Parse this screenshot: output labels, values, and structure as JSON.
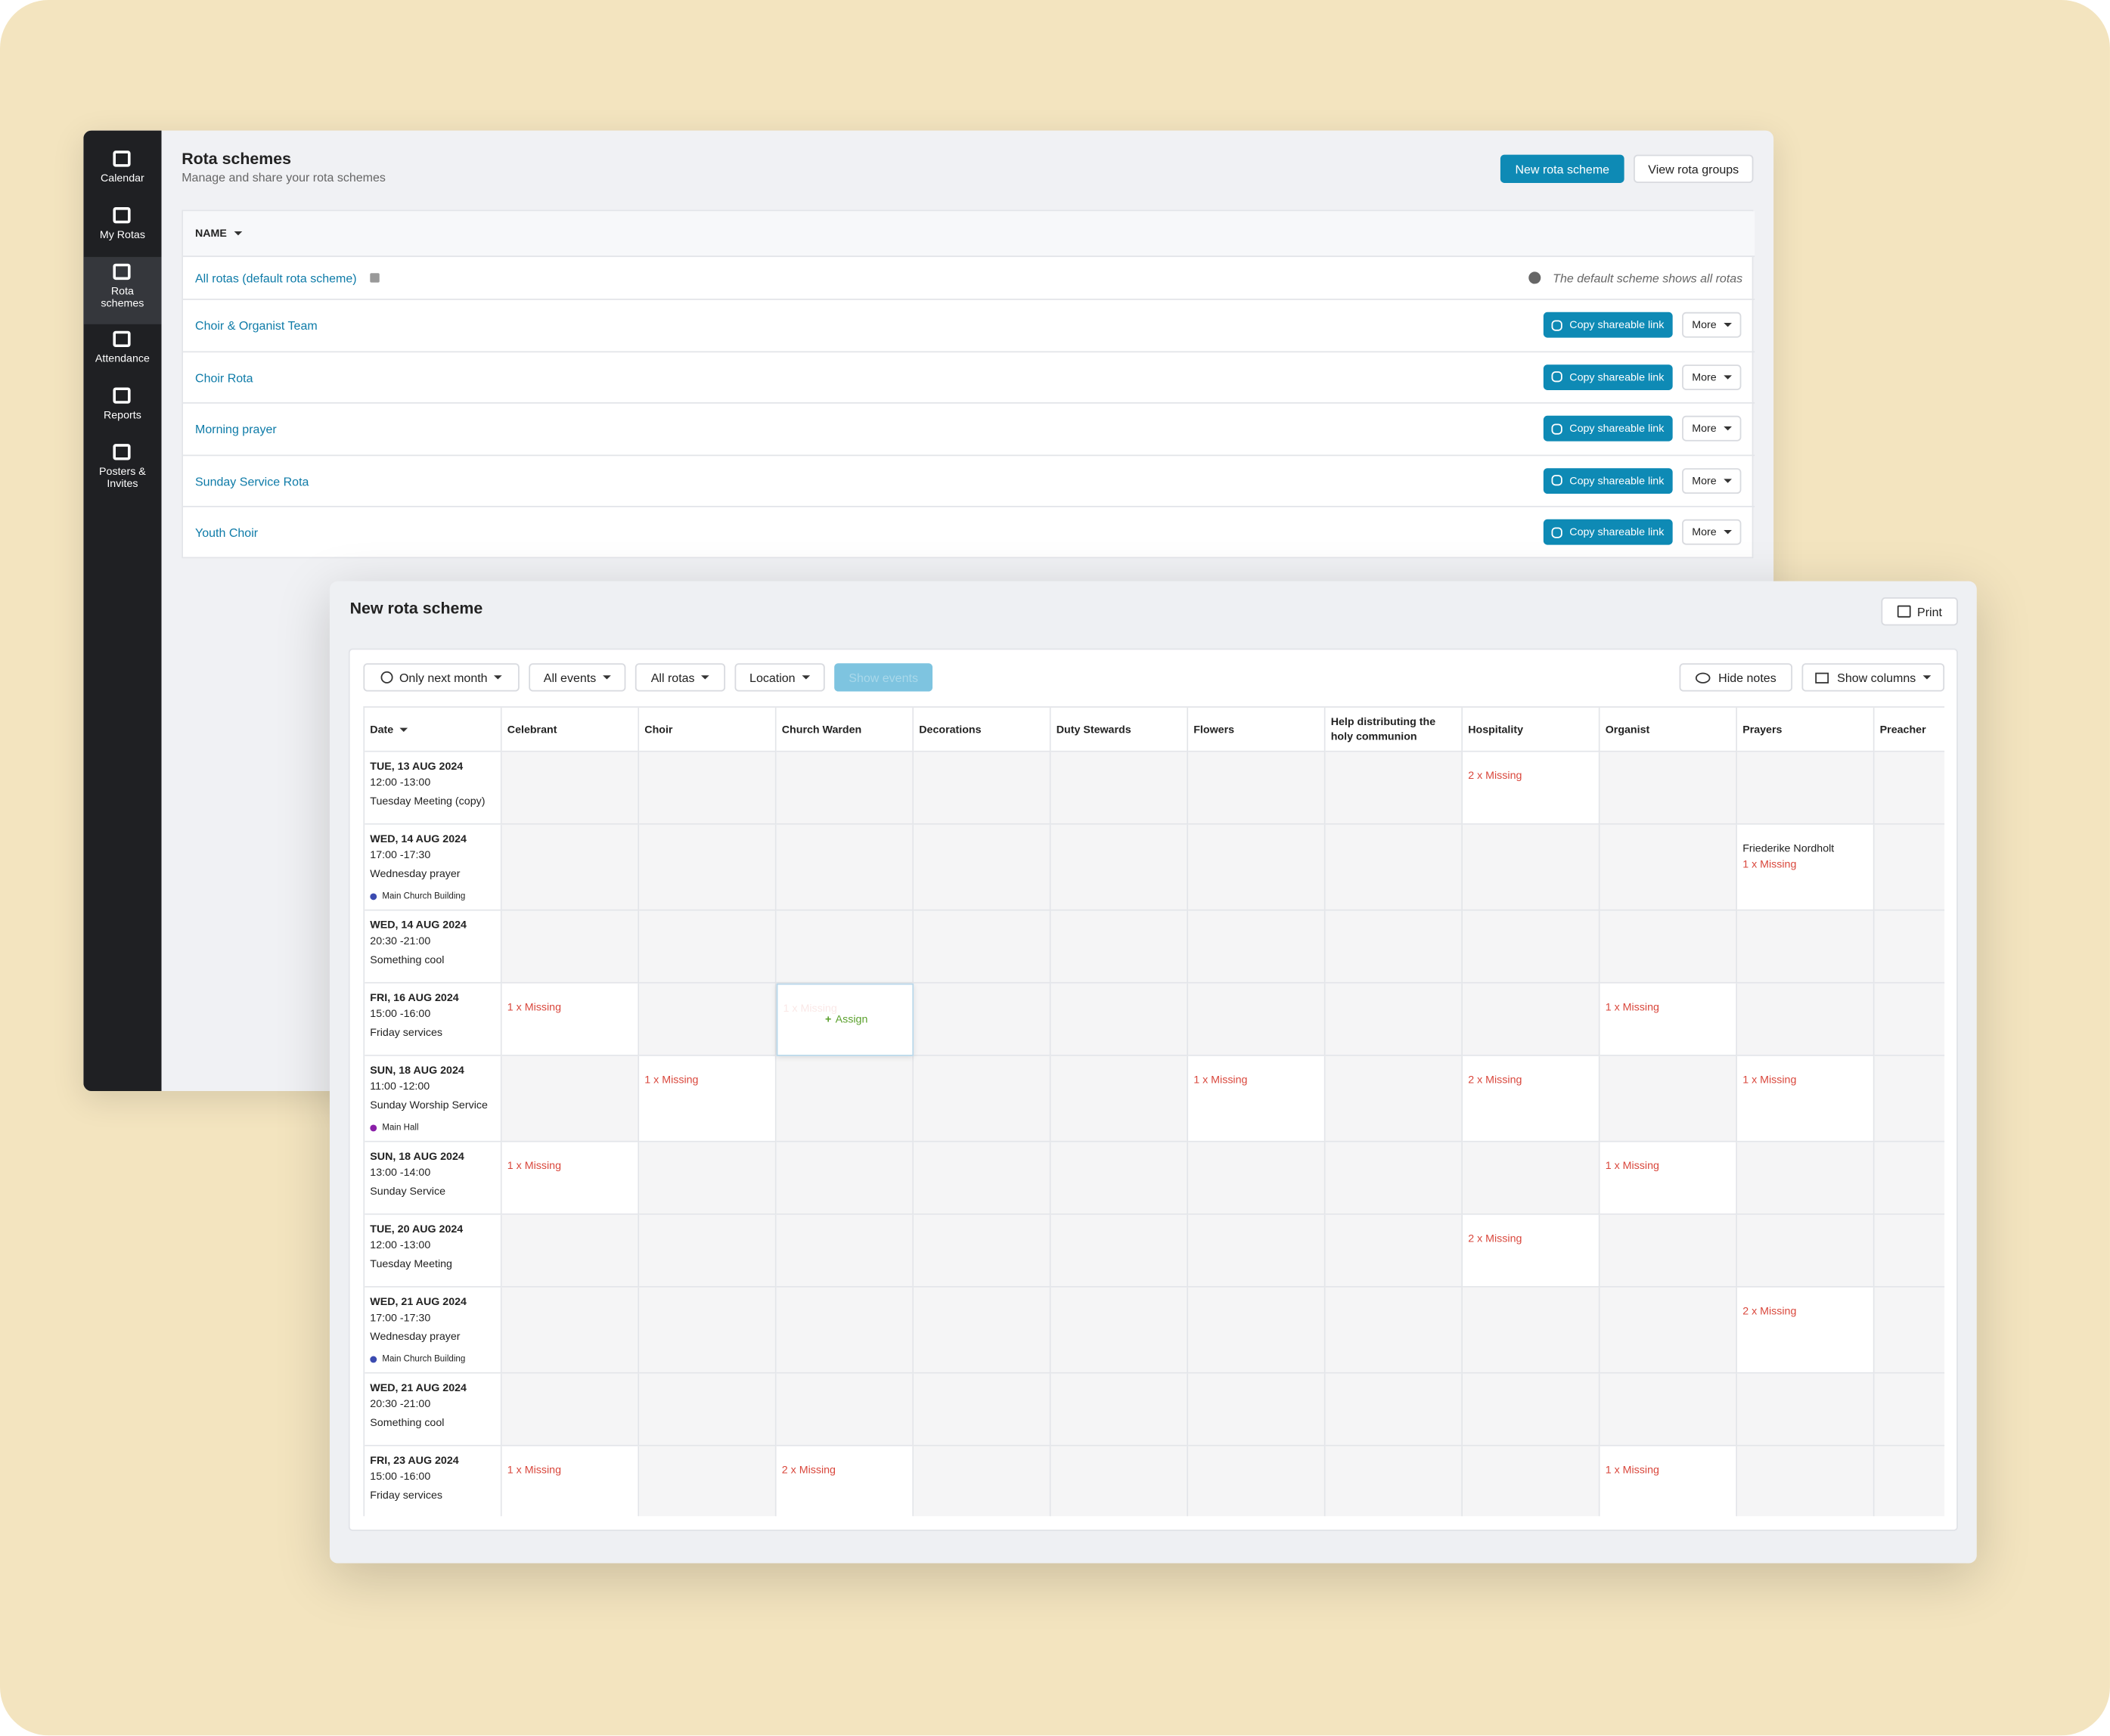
{
  "sidebar": [
    {
      "label": "Calendar"
    },
    {
      "label": "My Rotas"
    },
    {
      "label": "Rota schemes",
      "active": true
    },
    {
      "label": "Attendance"
    },
    {
      "label": "Reports"
    },
    {
      "label": "Posters & Invites"
    }
  ],
  "schemes_page": {
    "title": "Rota schemes",
    "subtitle": "Manage and share your rota schemes",
    "primary_button": "New rota scheme",
    "secondary_button": "View rota groups",
    "column": "NAME",
    "default_row": {
      "name": "All rotas (default rota scheme)",
      "note": "The default scheme shows all rotas"
    },
    "rows": [
      "Choir & Organist Team",
      "Choir Rota",
      "Morning prayer",
      "Sunday Service Rota",
      "Youth Choir"
    ],
    "copy_label": "Copy shareable link",
    "more_label": "More"
  },
  "new_scheme": {
    "title": "New rota scheme",
    "print": "Print",
    "filters": [
      "Only next month",
      "All events",
      "All rotas",
      "Location"
    ],
    "show_events": "Show events",
    "hide_notes": "Hide notes",
    "show_columns": "Show columns",
    "columns": [
      "Date",
      "Celebrant",
      "Choir",
      "Church Warden",
      "Decorations",
      "Duty Stewards",
      "Flowers",
      "Help distributing the holy communion",
      "Hospitality",
      "Organist",
      "Prayers",
      "Preacher"
    ],
    "events": [
      {
        "date": "TUE, 13 AUG 2024",
        "time": "12:00 -13:00",
        "name": "Tuesday Meeting (copy)",
        "location": null,
        "cells": [
          null,
          null,
          null,
          null,
          null,
          null,
          null,
          [
            {
              "text": "2 x Missing",
              "missing": true
            }
          ],
          null,
          null,
          null
        ]
      },
      {
        "date": "WED, 14 AUG 2024",
        "time": "17:00 -17:30",
        "name": "Wednesday prayer",
        "location": {
          "name": "Main Church Building",
          "color": "#3b4bb0"
        },
        "cells": [
          null,
          null,
          null,
          null,
          null,
          null,
          null,
          null,
          null,
          [
            {
              "text": "Friederike Nordholt",
              "missing": false
            },
            {
              "text": "1 x Missing",
              "missing": true
            }
          ],
          null
        ]
      },
      {
        "date": "WED, 14 AUG 2024",
        "time": "20:30 -21:00",
        "name": "Something cool",
        "location": null,
        "cells": [
          null,
          null,
          null,
          null,
          null,
          null,
          null,
          null,
          null,
          null,
          null
        ]
      },
      {
        "date": "FRI, 16 AUG 2024",
        "time": "15:00 -16:00",
        "name": "Friday services",
        "location": null,
        "cells": [
          [
            {
              "text": "1 x Missing",
              "missing": true
            }
          ],
          null,
          [
            {
              "text": "1 x Missing",
              "missing": true,
              "hover_action": "Assign"
            }
          ],
          null,
          null,
          null,
          null,
          null,
          [
            {
              "text": "1 x Missing",
              "missing": true
            }
          ],
          null,
          null
        ]
      },
      {
        "date": "SUN, 18 AUG 2024",
        "time": "11:00 -12:00",
        "name": "Sunday Worship Service",
        "location": {
          "name": "Main Hall",
          "color": "#8a1fa8"
        },
        "cells": [
          null,
          [
            {
              "text": "1 x Missing",
              "missing": true
            }
          ],
          null,
          null,
          null,
          [
            {
              "text": "1 x Missing",
              "missing": true
            }
          ],
          null,
          [
            {
              "text": "2 x Missing",
              "missing": true
            }
          ],
          null,
          [
            {
              "text": "1 x Missing",
              "missing": true
            }
          ],
          null
        ]
      },
      {
        "date": "SUN, 18 AUG 2024",
        "time": "13:00 -14:00",
        "name": "Sunday Service",
        "location": null,
        "cells": [
          [
            {
              "text": "1 x Missing",
              "missing": true
            }
          ],
          null,
          null,
          null,
          null,
          null,
          null,
          null,
          [
            {
              "text": "1 x Missing",
              "missing": true
            }
          ],
          null,
          null
        ]
      },
      {
        "date": "TUE, 20 AUG 2024",
        "time": "12:00 -13:00",
        "name": "Tuesday Meeting",
        "location": null,
        "cells": [
          null,
          null,
          null,
          null,
          null,
          null,
          null,
          [
            {
              "text": "2 x Missing",
              "missing": true
            }
          ],
          null,
          null,
          null
        ]
      },
      {
        "date": "WED, 21 AUG 2024",
        "time": "17:00 -17:30",
        "name": "Wednesday prayer",
        "location": {
          "name": "Main Church Building",
          "color": "#3b4bb0"
        },
        "cells": [
          null,
          null,
          null,
          null,
          null,
          null,
          null,
          null,
          null,
          [
            {
              "text": "2 x Missing",
              "missing": true
            }
          ],
          null
        ]
      },
      {
        "date": "WED, 21 AUG 2024",
        "time": "20:30 -21:00",
        "name": "Something cool",
        "location": null,
        "cells": [
          null,
          null,
          null,
          null,
          null,
          null,
          null,
          null,
          null,
          null,
          null
        ]
      },
      {
        "date": "FRI, 23 AUG 2024",
        "time": "15:00 -16:00",
        "name": "Friday services",
        "location": null,
        "cells": [
          [
            {
              "text": "1 x Missing",
              "missing": true
            }
          ],
          null,
          [
            {
              "text": "2 x Missing",
              "missing": true
            }
          ],
          null,
          null,
          null,
          null,
          null,
          [
            {
              "text": "1 x Missing",
              "missing": true
            }
          ],
          null,
          null
        ]
      }
    ]
  }
}
